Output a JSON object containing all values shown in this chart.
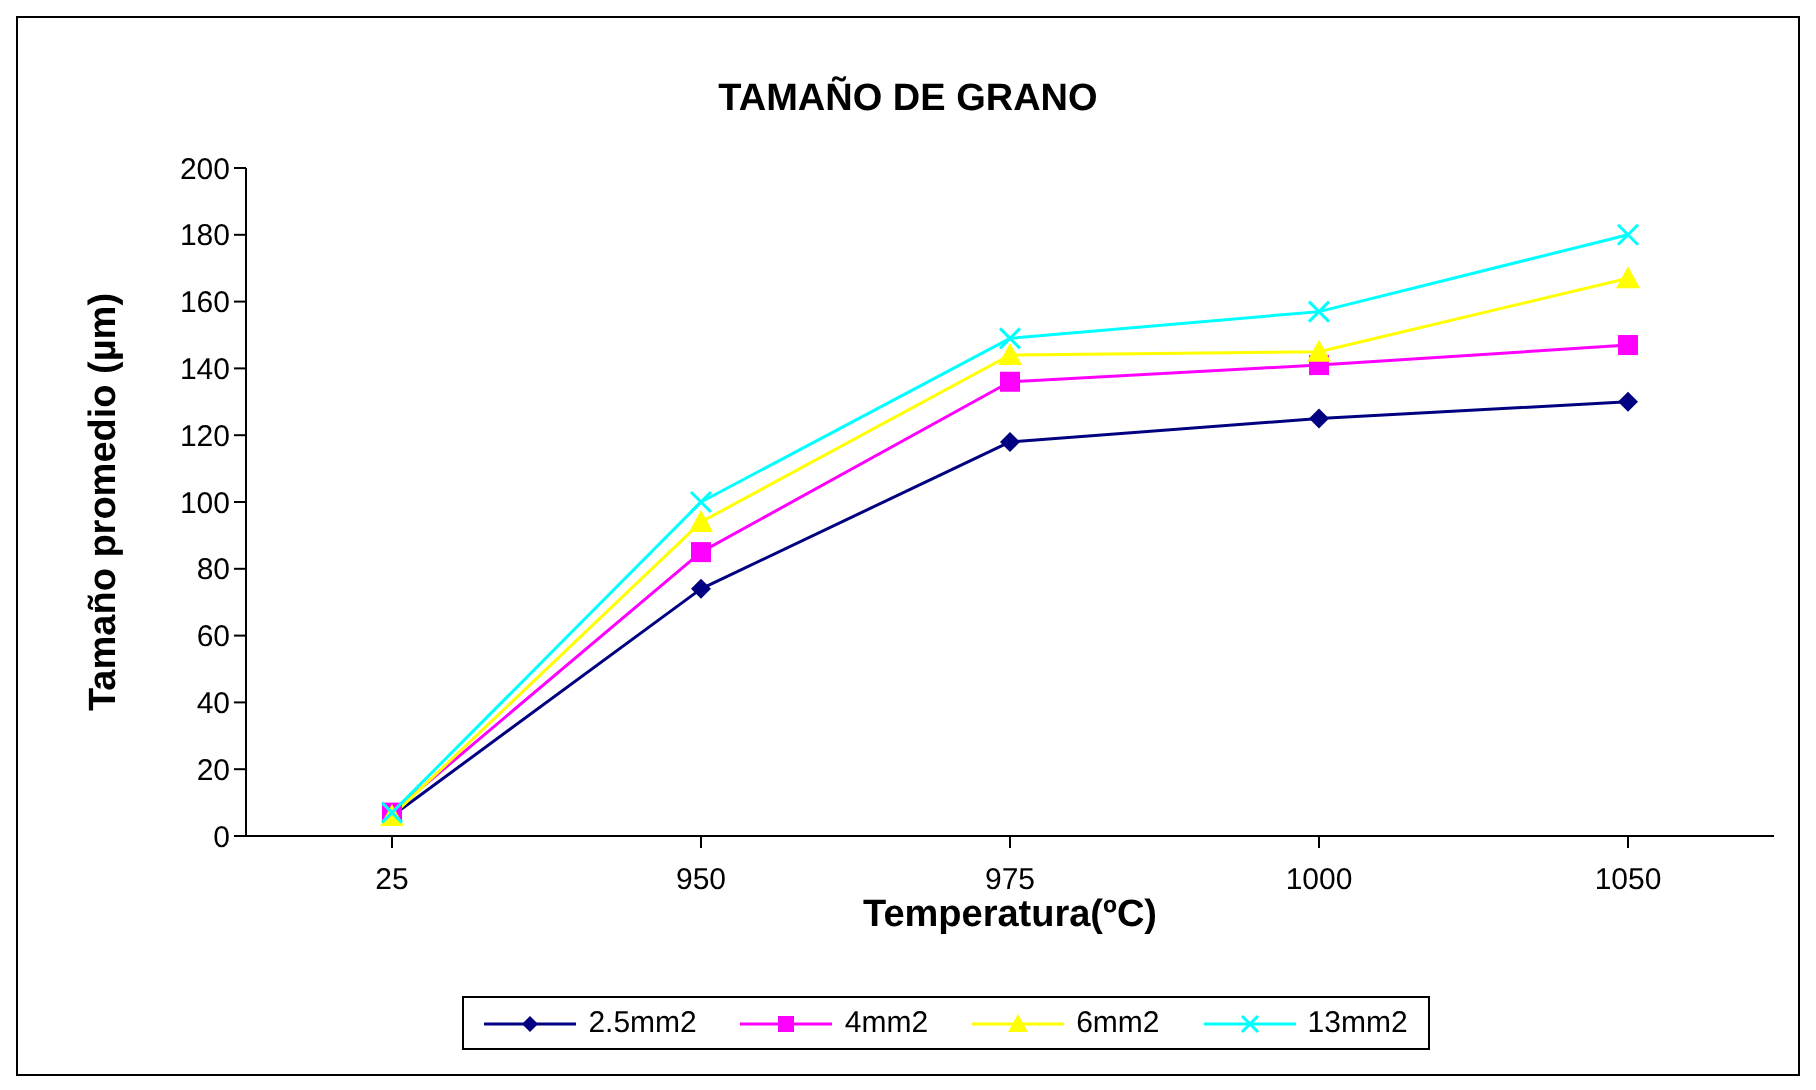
{
  "chart_data": {
    "type": "line",
    "title": "TAMAÑO DE GRANO",
    "xlabel": "Temperatura(ºC)",
    "ylabel": "Tamaño promedio (µm)",
    "categories": [
      "25",
      "950",
      "975",
      "1000",
      "1050"
    ],
    "series": [
      {
        "name": "2.5mm2",
        "color": "#000080",
        "marker": "diamond",
        "values": [
          6,
          74,
          118,
          125,
          130
        ]
      },
      {
        "name": "4mm2",
        "color": "#ff00ff",
        "marker": "square",
        "values": [
          7,
          85,
          136,
          141,
          147
        ]
      },
      {
        "name": "6mm2",
        "color": "#ffff00",
        "marker": "triangle",
        "values": [
          6,
          94,
          144,
          145,
          167
        ]
      },
      {
        "name": "13mm2",
        "color": "#00ffff",
        "marker": "cross",
        "values": [
          7,
          100,
          149,
          157,
          180
        ]
      }
    ],
    "ylim": [
      0,
      200
    ],
    "yticks": [
      0,
      20,
      40,
      60,
      80,
      100,
      120,
      140,
      160,
      180,
      200
    ],
    "grid": false,
    "legend": "bottom"
  }
}
